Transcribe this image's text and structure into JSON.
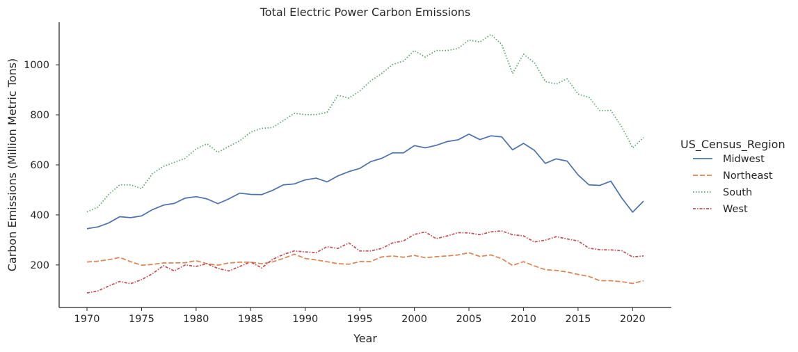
{
  "chart_data": {
    "type": "line",
    "title": "Total Electric Power Carbon Emissions",
    "xlabel": "Year",
    "ylabel": "Carbon Emissions (Million Metric Tons)",
    "x_ticks": [
      1970,
      1975,
      1980,
      1985,
      1990,
      1995,
      2000,
      2005,
      2010,
      2015,
      2020
    ],
    "y_ticks": [
      200,
      400,
      600,
      800,
      1000
    ],
    "xlim": [
      1967.45,
      2023.55
    ],
    "ylim": [
      30,
      1170
    ],
    "grid": false,
    "legend": {
      "title": "US_Census_Region",
      "placement": "right"
    },
    "x": [
      1970,
      1971,
      1972,
      1973,
      1974,
      1975,
      1976,
      1977,
      1978,
      1979,
      1980,
      1981,
      1982,
      1983,
      1984,
      1985,
      1986,
      1987,
      1988,
      1989,
      1990,
      1991,
      1992,
      1993,
      1994,
      1995,
      1996,
      1997,
      1998,
      1999,
      2000,
      2001,
      2002,
      2003,
      2004,
      2005,
      2006,
      2007,
      2008,
      2009,
      2010,
      2011,
      2012,
      2013,
      2014,
      2015,
      2016,
      2017,
      2018,
      2019,
      2020,
      2021
    ],
    "series": [
      {
        "name": "Midwest",
        "color": "#4c72b0",
        "dash": "solid",
        "values": [
          345,
          352,
          368,
          393,
          389,
          396,
          421,
          439,
          446,
          467,
          473,
          464,
          445,
          464,
          487,
          482,
          481,
          498,
          520,
          524,
          540,
          547,
          532,
          556,
          573,
          586,
          613,
          626,
          648,
          648,
          677,
          668,
          678,
          693,
          700,
          723,
          701,
          716,
          712,
          660,
          686,
          658,
          606,
          624,
          615,
          560,
          520,
          518,
          535,
          468,
          411,
          455
        ]
      },
      {
        "name": "Northeast",
        "color": "#dd8452",
        "dash": "dashed",
        "values": [
          212,
          215,
          221,
          230,
          213,
          199,
          202,
          208,
          208,
          209,
          217,
          205,
          199,
          208,
          211,
          211,
          205,
          212,
          226,
          243,
          226,
          220,
          213,
          205,
          203,
          213,
          214,
          232,
          236,
          231,
          238,
          229,
          233,
          236,
          240,
          249,
          234,
          240,
          225,
          198,
          213,
          196,
          181,
          178,
          172,
          162,
          154,
          137,
          137,
          133,
          126,
          137
        ]
      },
      {
        "name": "South",
        "color": "#55a868",
        "dash": "dotted",
        "values": [
          412,
          431,
          482,
          520,
          520,
          505,
          565,
          594,
          610,
          626,
          664,
          684,
          650,
          674,
          696,
          731,
          746,
          749,
          777,
          806,
          801,
          801,
          810,
          878,
          867,
          895,
          936,
          965,
          1001,
          1015,
          1057,
          1031,
          1057,
          1057,
          1065,
          1099,
          1091,
          1121,
          1082,
          965,
          1043,
          1008,
          933,
          923,
          944,
          883,
          870,
          816,
          818,
          752,
          668,
          709
        ]
      },
      {
        "name": "West",
        "color": "#c44e52",
        "dash": "dashdot",
        "values": [
          88,
          96,
          116,
          134,
          125,
          141,
          165,
          197,
          176,
          200,
          194,
          205,
          186,
          176,
          194,
          212,
          188,
          222,
          242,
          256,
          252,
          249,
          273,
          266,
          288,
          256,
          256,
          266,
          288,
          296,
          322,
          332,
          305,
          316,
          329,
          328,
          321,
          332,
          336,
          321,
          316,
          292,
          299,
          313,
          304,
          296,
          267,
          261,
          260,
          257,
          232,
          236
        ]
      }
    ]
  }
}
